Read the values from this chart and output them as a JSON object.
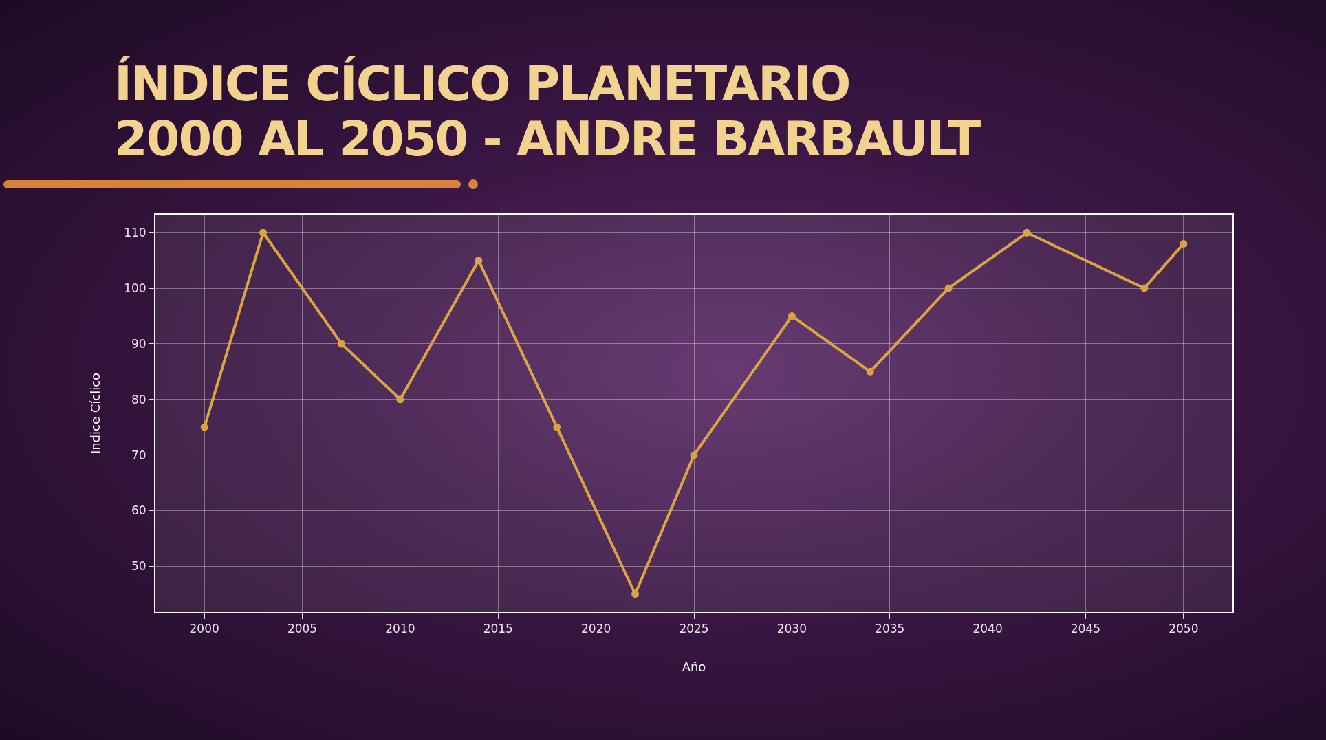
{
  "chart_data": {
    "type": "line",
    "title": "ÍNDICE CÍCLICO PLANETARIO\n2000 AL 2050 - ANDRE BARBAULT",
    "xlabel": "Año",
    "ylabel": "Indice Cíclico",
    "x": [
      2000,
      2003,
      2007,
      2010,
      2014,
      2018,
      2022,
      2025,
      2030,
      2034,
      2038,
      2042,
      2048,
      2050
    ],
    "series": [
      {
        "color": "#d9a441",
        "values": [
          75,
          110,
          90,
          80,
          105,
          75,
          45,
          70,
          95,
          85,
          100,
          110,
          100,
          108
        ]
      }
    ],
    "xlim": [
      1997.5,
      2052.5
    ],
    "xticks": [
      2000,
      2005,
      2010,
      2015,
      2020,
      2025,
      2030,
      2035,
      2040,
      2045,
      2050
    ],
    "ylim": [
      41.75,
      113.25
    ],
    "yticks": [
      50,
      60,
      70,
      80,
      90,
      100,
      110
    ],
    "grid": true,
    "marker": "circle",
    "line_style": "solid"
  }
}
